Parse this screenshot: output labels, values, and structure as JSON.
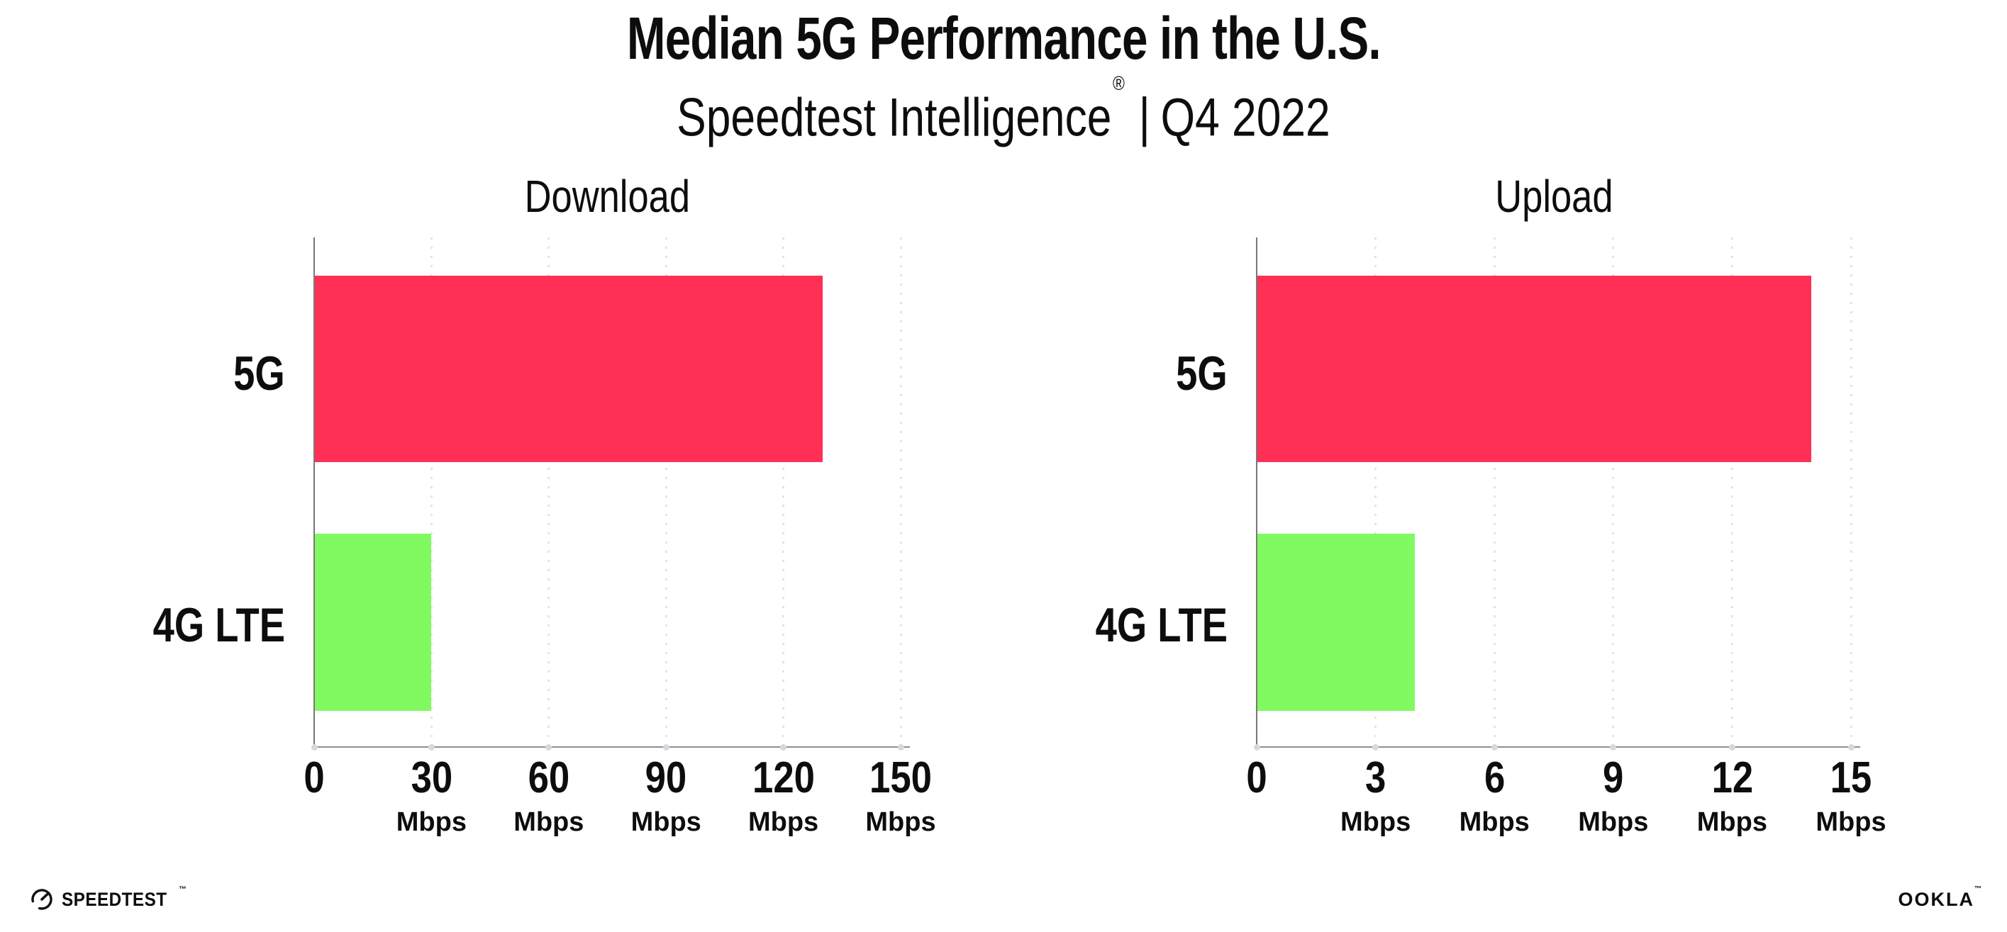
{
  "page": {
    "background": "#FFFFFF"
  },
  "header": {
    "title": "Median 5G Performance in the U.S.",
    "subtitle": {
      "product": "Speedtest Intelligence",
      "registered_mark": "®",
      "divider": "|",
      "period": "Q4 2022"
    }
  },
  "colors": {
    "bar_5g": "#FF2F56",
    "bar_4g_lte": "#80FA60",
    "axis_line": "#8F8F8F",
    "gridline_dotted": "#E2E2EC",
    "tick_dot": "#D7D7E2",
    "text": "#0D0D0D"
  },
  "chart_data": [
    {
      "type": "bar",
      "orientation": "horizontal",
      "title": "Download",
      "categories": [
        "5G",
        "4G LTE"
      ],
      "values": [
        130,
        30
      ],
      "unit": "Mbps",
      "xlim": [
        0,
        150
      ],
      "xticks": [
        0,
        30,
        60,
        90,
        120,
        150
      ],
      "tick_unit": "Mbps",
      "bar_colors": [
        "#FF2F56",
        "#80FA60"
      ],
      "grid": "vertical-dotted",
      "legend": "none"
    },
    {
      "type": "bar",
      "orientation": "horizontal",
      "title": "Upload",
      "categories": [
        "5G",
        "4G LTE"
      ],
      "values": [
        14,
        4
      ],
      "unit": "Mbps",
      "xlim": [
        0,
        15
      ],
      "xticks": [
        0,
        3,
        6,
        9,
        12,
        15
      ],
      "tick_unit": "Mbps",
      "bar_colors": [
        "#FF2F56",
        "#80FA60"
      ],
      "grid": "vertical-dotted",
      "legend": "none"
    }
  ],
  "footer": {
    "speedtest_wordmark": "SPEEDTEST",
    "speedtest_trademark": "™",
    "ookla_wordmark": "OOKLA",
    "ookla_trademark": "™"
  }
}
